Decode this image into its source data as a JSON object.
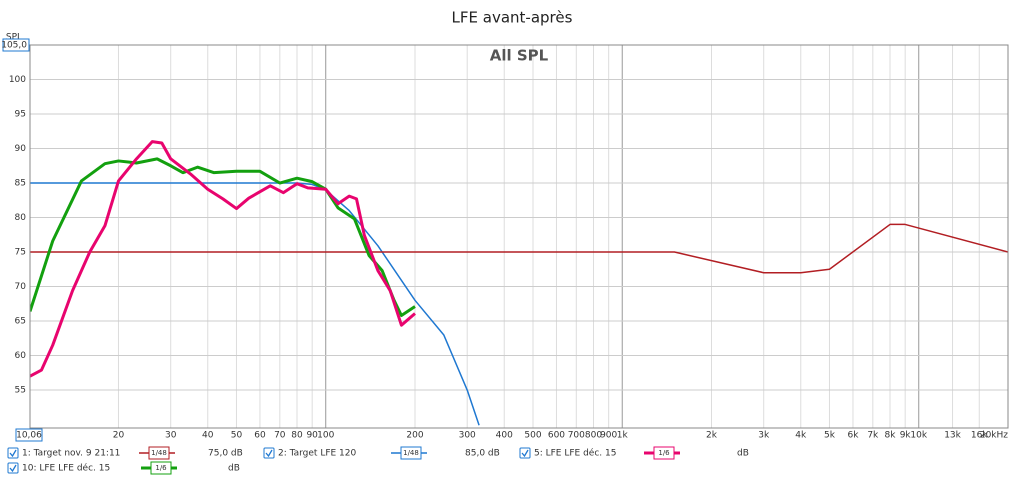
{
  "chart_data": {
    "type": "line",
    "title": "LFE avant-après",
    "annotation": "All SPL",
    "y_label": "SPL",
    "log_x": true,
    "grid": true,
    "xlim": [
      10.06,
      20000
    ],
    "ylim": [
      49.5,
      105
    ],
    "xticks": [
      {
        "value": 10.06,
        "label": "10,06"
      },
      20,
      30,
      40,
      50,
      60,
      70,
      80,
      90,
      100,
      200,
      300,
      400,
      500,
      600,
      700,
      800,
      900,
      {
        "value": 1000,
        "label": "1k"
      },
      {
        "value": 2000,
        "label": "2k"
      },
      {
        "value": 3000,
        "label": "3k"
      },
      {
        "value": 4000,
        "label": "4k"
      },
      {
        "value": 5000,
        "label": "5k"
      },
      {
        "value": 6000,
        "label": "6k"
      },
      {
        "value": 7000,
        "label": "7k"
      },
      {
        "value": 8000,
        "label": "8k"
      },
      {
        "value": 9000,
        "label": "9k"
      },
      {
        "value": 10000,
        "label": "10k"
      },
      {
        "value": 13000,
        "label": "13k"
      },
      {
        "value": 16000,
        "label": "16k"
      },
      {
        "value": 20000,
        "label": "20kHz"
      }
    ],
    "yticks": [
      55,
      60,
      65,
      70,
      75,
      80,
      85,
      90,
      95,
      100,
      {
        "value": 105,
        "label": "105,0"
      }
    ],
    "series": [
      {
        "name": "1: Target nov. 9 21:11",
        "color": "#b21e23",
        "width": 1.5,
        "smoothing": "1/48",
        "level": "75,0 dB",
        "x": [
          10.06,
          1500,
          3000,
          4000,
          5000,
          8000,
          9000,
          20000
        ],
        "values": [
          75,
          75,
          72,
          72,
          72.5,
          79,
          79,
          75
        ]
      },
      {
        "name": "2: Target LFE 120",
        "color": "#1f78d1",
        "width": 1.5,
        "smoothing": "1/48",
        "level": "85,0 dB",
        "x": [
          10.06,
          80,
          90,
          100,
          120,
          150,
          200,
          250,
          300,
          329
        ],
        "values": [
          85,
          85,
          84.8,
          84,
          81,
          75.9,
          68,
          63,
          55,
          49.9
        ]
      },
      {
        "name": "5: LFE LFE déc. 15",
        "color": "#e8046e",
        "width": 3,
        "smoothing": "1/6",
        "level": "dB",
        "x": [
          10.06,
          11,
          12,
          14,
          16,
          18,
          20,
          23,
          26,
          28,
          30,
          35,
          40,
          45,
          50,
          55,
          65,
          72,
          80,
          87,
          100,
          110,
          120,
          127,
          135,
          150,
          165,
          180,
          200
        ],
        "values": [
          57,
          57.9,
          61.5,
          69.4,
          75,
          78.8,
          85.3,
          88.5,
          91,
          90.8,
          88.5,
          86.3,
          84.1,
          82.7,
          81.3,
          82.8,
          84.6,
          83.6,
          84.9,
          84.3,
          84.1,
          82,
          83.1,
          82.7,
          77.4,
          72.3,
          69.4,
          64.4,
          66.1
        ]
      },
      {
        "name": "10: LFE LFE déc. 15",
        "color": "#13a00f",
        "width": 3,
        "smoothing": "1/6",
        "level": "dB",
        "x": [
          10.06,
          12,
          15,
          18,
          20,
          23,
          27,
          30,
          33,
          37,
          42,
          50,
          60,
          70,
          80,
          90,
          100,
          110,
          125,
          140,
          155,
          170,
          180,
          200
        ],
        "values": [
          66.4,
          76.6,
          85.3,
          87.8,
          88.2,
          87.9,
          88.5,
          87.5,
          86.5,
          87.3,
          86.5,
          86.7,
          86.7,
          85,
          85.7,
          85.2,
          84.1,
          81.4,
          79.8,
          74.5,
          72.3,
          68,
          65.8,
          67.1
        ]
      }
    ]
  }
}
